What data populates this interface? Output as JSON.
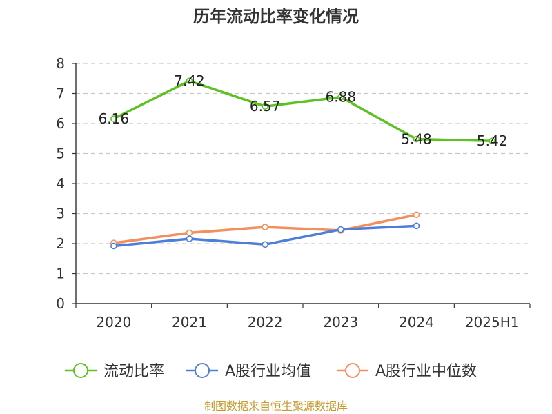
{
  "chart_data": {
    "type": "line",
    "title": "历年流动比率变化情况",
    "categories": [
      "2020",
      "2021",
      "2022",
      "2023",
      "2024",
      "2025H1"
    ],
    "ylim": [
      0,
      8
    ],
    "yticks": [
      "0",
      "1",
      "2",
      "3",
      "4",
      "5",
      "6",
      "7",
      "8"
    ],
    "grid": true,
    "legend_position": "bottom",
    "series": [
      {
        "name": "流动比率",
        "color": "#5cc222",
        "values": [
          6.16,
          7.42,
          6.57,
          6.88,
          5.48,
          5.42
        ],
        "labels": [
          "6.16",
          "7.42",
          "6.57",
          "6.88",
          "5.48",
          "5.42"
        ]
      },
      {
        "name": "A股行业均值",
        "color": "#4e7fd8",
        "values": [
          1.92,
          2.16,
          1.97,
          2.47,
          2.59,
          null
        ]
      },
      {
        "name": "A股行业中位数",
        "color": "#f38f5c",
        "values": [
          2.02,
          2.36,
          2.55,
          2.44,
          2.96,
          null
        ]
      }
    ],
    "source": "制图数据来自恒生聚源数据库"
  }
}
